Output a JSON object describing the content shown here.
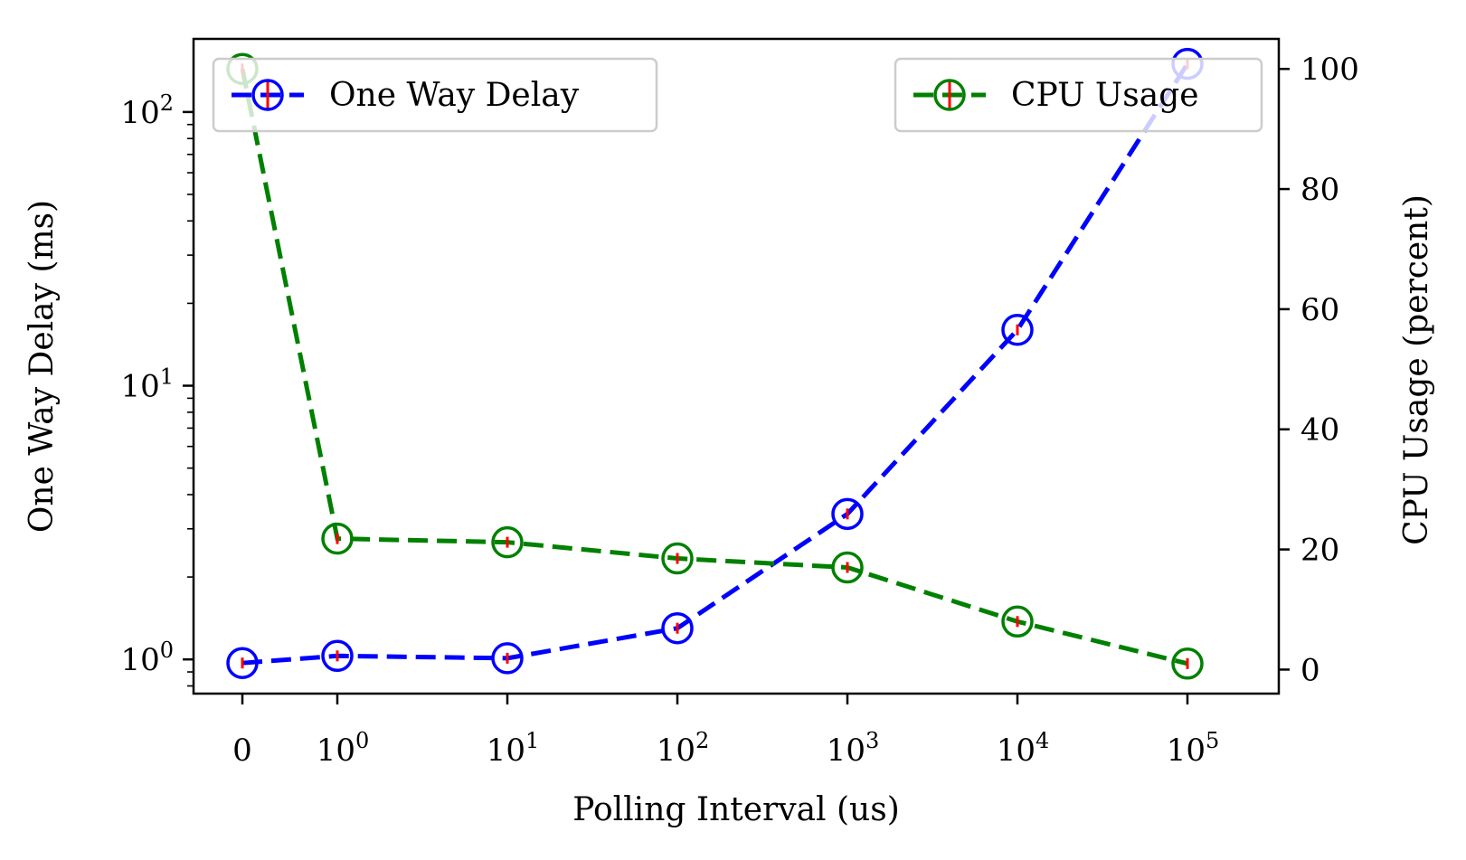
{
  "chart_data": {
    "type": "line",
    "xlabel": "Polling Interval (us)",
    "ylabel_left": "One Way Delay (ms)",
    "ylabel_right": "CPU Usage (percent)",
    "x_ticks": [
      {
        "base": "0",
        "exp": ""
      },
      {
        "base": "10",
        "exp": "0"
      },
      {
        "base": "10",
        "exp": "1"
      },
      {
        "base": "10",
        "exp": "2"
      },
      {
        "base": "10",
        "exp": "3"
      },
      {
        "base": "10",
        "exp": "4"
      },
      {
        "base": "10",
        "exp": "5"
      }
    ],
    "x_values": [
      0,
      1,
      10,
      100,
      1000,
      10000,
      100000
    ],
    "left_axis": {
      "scale": "log",
      "ylim": [
        0.75,
        185
      ],
      "ticks": [
        {
          "value": 1,
          "base": "10",
          "exp": "0"
        },
        {
          "value": 10,
          "base": "10",
          "exp": "1"
        },
        {
          "value": 100,
          "base": "10",
          "exp": "2"
        }
      ]
    },
    "right_axis": {
      "scale": "linear",
      "ylim": [
        -4,
        105
      ],
      "ticks": [
        0,
        20,
        40,
        60,
        80,
        100
      ]
    },
    "series": [
      {
        "name": "One Way Delay",
        "axis": "left",
        "color": "#0000ff",
        "values": [
          0.97,
          1.03,
          1.01,
          1.3,
          3.4,
          16,
          150
        ]
      },
      {
        "name": "CPU Usage",
        "axis": "right",
        "color": "#008000",
        "values": [
          100,
          21.8,
          21.2,
          18.5,
          17,
          8,
          1
        ]
      }
    ],
    "error_bar_color": "#ff0000",
    "legends": [
      {
        "series": "One Way Delay",
        "placement": "upper-left"
      },
      {
        "series": "CPU Usage",
        "placement": "upper-right"
      }
    ],
    "grid": false
  }
}
